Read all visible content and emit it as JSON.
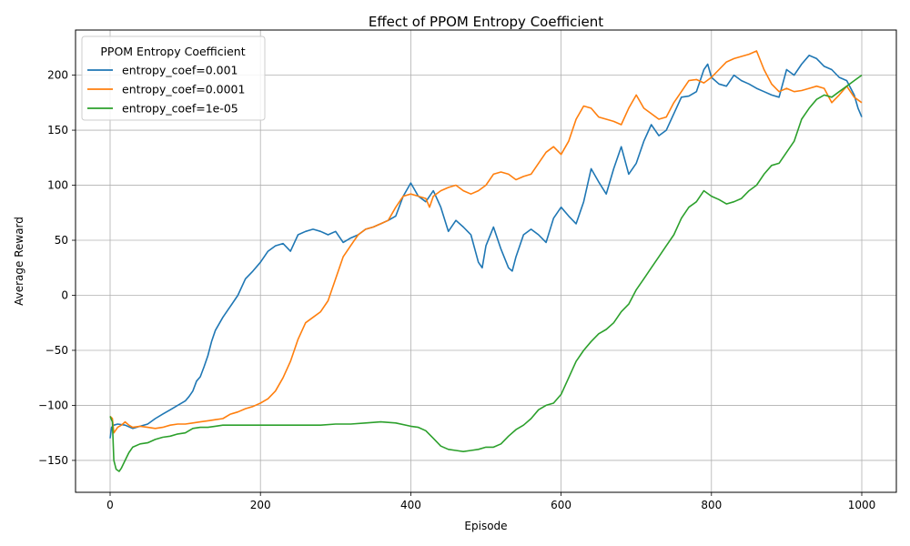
{
  "chart_data": {
    "type": "line",
    "title": "Effect of PPOM Entropy Coefficient",
    "xlabel": "Episode",
    "ylabel": "Average Reward",
    "xlim": [
      -46,
      1046
    ],
    "ylim": [
      -179,
      241
    ],
    "xticks": [
      0,
      200,
      400,
      600,
      800,
      1000
    ],
    "yticks": [
      -150,
      -100,
      -50,
      0,
      50,
      100,
      150,
      200
    ],
    "xtick_labels": [
      "0",
      "200",
      "400",
      "600",
      "800",
      "1000"
    ],
    "ytick_labels": [
      "−150",
      "−100",
      "−50",
      "0",
      "50",
      "100",
      "150",
      "200"
    ],
    "grid": true,
    "legend": {
      "title": "PPOM Entropy Coefficient",
      "placement": "top-left"
    },
    "series": [
      {
        "name": "entropy_coef=0.001",
        "color": "#1f77b4",
        "x": [
          0,
          2,
          5,
          10,
          20,
          30,
          40,
          50,
          60,
          70,
          80,
          90,
          100,
          105,
          110,
          115,
          120,
          125,
          130,
          135,
          140,
          150,
          160,
          170,
          180,
          190,
          200,
          210,
          220,
          230,
          240,
          250,
          260,
          270,
          280,
          290,
          300,
          310,
          320,
          330,
          340,
          350,
          360,
          370,
          380,
          390,
          400,
          410,
          420,
          430,
          440,
          450,
          460,
          470,
          480,
          490,
          495,
          500,
          510,
          520,
          530,
          535,
          540,
          550,
          560,
          570,
          580,
          590,
          600,
          610,
          620,
          630,
          640,
          650,
          660,
          670,
          680,
          690,
          700,
          710,
          720,
          730,
          740,
          750,
          760,
          770,
          780,
          790,
          795,
          800,
          810,
          820,
          830,
          840,
          850,
          860,
          870,
          880,
          890,
          900,
          910,
          920,
          930,
          940,
          950,
          960,
          970,
          980,
          990,
          995,
          1000
        ],
        "y": [
          -130,
          -120,
          -118,
          -117,
          -118,
          -121,
          -119,
          -117,
          -112,
          -108,
          -104,
          -100,
          -96,
          -92,
          -87,
          -78,
          -74,
          -65,
          -55,
          -42,
          -32,
          -20,
          -10,
          0,
          15,
          22,
          30,
          40,
          45,
          47,
          40,
          55,
          58,
          60,
          58,
          55,
          58,
          48,
          52,
          55,
          60,
          62,
          65,
          68,
          72,
          90,
          102,
          90,
          85,
          95,
          80,
          58,
          68,
          62,
          55,
          30,
          25,
          45,
          62,
          42,
          25,
          22,
          35,
          55,
          60,
          55,
          48,
          70,
          80,
          72,
          65,
          85,
          115,
          103,
          92,
          115,
          135,
          110,
          120,
          140,
          155,
          145,
          150,
          165,
          180,
          181,
          185,
          205,
          210,
          198,
          192,
          190,
          200,
          195,
          192,
          188,
          185,
          182,
          180,
          205,
          200,
          210,
          218,
          215,
          208,
          205,
          198,
          195,
          182,
          170,
          162
        ]
      },
      {
        "name": "entropy_coef=0.0001",
        "color": "#ff7f0e",
        "x": [
          0,
          3,
          5,
          10,
          15,
          20,
          25,
          30,
          40,
          50,
          60,
          70,
          80,
          90,
          100,
          110,
          120,
          130,
          140,
          150,
          160,
          170,
          180,
          190,
          200,
          210,
          220,
          230,
          240,
          250,
          260,
          270,
          280,
          290,
          300,
          310,
          320,
          330,
          340,
          350,
          360,
          370,
          380,
          390,
          400,
          410,
          420,
          425,
          430,
          440,
          450,
          460,
          470,
          480,
          490,
          500,
          510,
          520,
          530,
          540,
          550,
          560,
          570,
          580,
          590,
          600,
          610,
          620,
          630,
          640,
          650,
          660,
          670,
          680,
          690,
          700,
          710,
          720,
          730,
          740,
          750,
          760,
          770,
          780,
          790,
          800,
          810,
          820,
          830,
          840,
          850,
          860,
          870,
          880,
          890,
          900,
          910,
          920,
          930,
          940,
          950,
          960,
          970,
          980,
          990,
          1000
        ],
        "y": [
          -110,
          -112,
          -125,
          -120,
          -118,
          -115,
          -118,
          -120,
          -119,
          -120,
          -121,
          -120,
          -118,
          -117,
          -117,
          -116,
          -115,
          -114,
          -113,
          -112,
          -108,
          -106,
          -103,
          -101,
          -98,
          -94,
          -87,
          -75,
          -60,
          -40,
          -25,
          -20,
          -15,
          -5,
          15,
          35,
          45,
          55,
          60,
          62,
          65,
          68,
          80,
          90,
          92,
          90,
          88,
          80,
          90,
          95,
          98,
          100,
          95,
          92,
          95,
          100,
          110,
          112,
          110,
          105,
          108,
          110,
          120,
          130,
          135,
          128,
          140,
          160,
          172,
          170,
          162,
          160,
          158,
          155,
          170,
          182,
          170,
          165,
          160,
          162,
          175,
          185,
          195,
          196,
          193,
          198,
          205,
          212,
          215,
          217,
          219,
          222,
          205,
          192,
          185,
          188,
          185,
          186,
          188,
          190,
          188,
          175,
          182,
          190,
          180,
          175
        ]
      },
      {
        "name": "entropy_coef=1e-05",
        "color": "#2ca02c",
        "x": [
          0,
          3,
          5,
          8,
          12,
          15,
          20,
          25,
          30,
          40,
          50,
          60,
          70,
          80,
          90,
          100,
          110,
          120,
          130,
          140,
          150,
          160,
          180,
          200,
          220,
          240,
          260,
          280,
          300,
          320,
          340,
          360,
          380,
          400,
          410,
          420,
          430,
          440,
          450,
          460,
          470,
          480,
          490,
          500,
          510,
          520,
          530,
          540,
          550,
          560,
          570,
          580,
          590,
          600,
          610,
          620,
          630,
          640,
          650,
          660,
          670,
          680,
          690,
          700,
          710,
          720,
          730,
          740,
          750,
          760,
          770,
          780,
          790,
          800,
          810,
          820,
          830,
          840,
          850,
          860,
          870,
          880,
          890,
          900,
          910,
          920,
          930,
          940,
          950,
          960,
          970,
          980,
          990,
          1000
        ],
        "y": [
          -110,
          -115,
          -150,
          -158,
          -160,
          -157,
          -150,
          -143,
          -138,
          -135,
          -134,
          -131,
          -129,
          -128,
          -126,
          -125,
          -121,
          -120,
          -120,
          -119,
          -118,
          -118,
          -118,
          -118,
          -118,
          -118,
          -118,
          -118,
          -117,
          -117,
          -116,
          -115,
          -116,
          -119,
          -120,
          -123,
          -130,
          -137,
          -140,
          -141,
          -142,
          -141,
          -140,
          -138,
          -138,
          -135,
          -128,
          -122,
          -118,
          -112,
          -104,
          -100,
          -98,
          -90,
          -75,
          -60,
          -50,
          -42,
          -35,
          -31,
          -25,
          -15,
          -8,
          5,
          15,
          25,
          35,
          45,
          55,
          70,
          80,
          85,
          95,
          90,
          87,
          83,
          85,
          88,
          95,
          100,
          110,
          118,
          120,
          130,
          140,
          160,
          170,
          178,
          182,
          180,
          185,
          190,
          195,
          200
        ]
      }
    ]
  }
}
